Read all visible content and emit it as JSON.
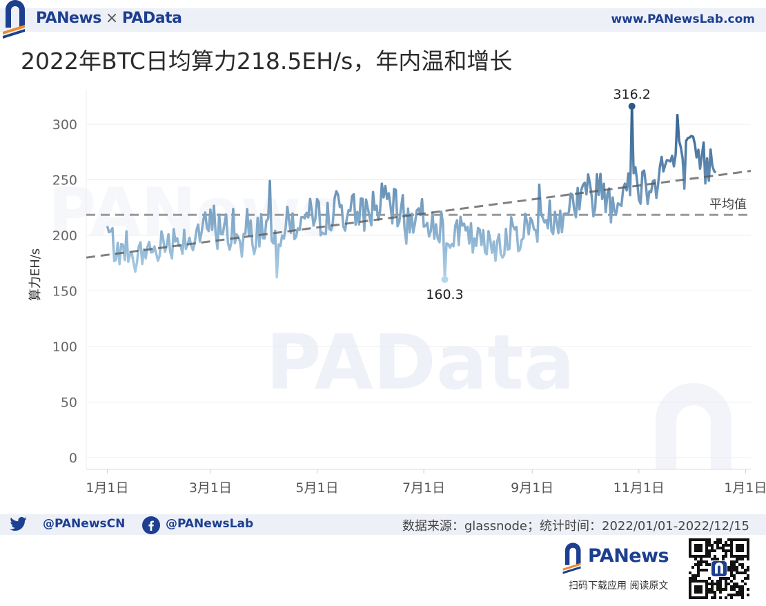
{
  "header": {
    "brand": "PANews",
    "separator": "×",
    "brand2": "PAData",
    "site": "www.PANewsLab.com"
  },
  "colors": {
    "brand_blue": "#1d3f8f",
    "line_light": "#a8cfe8",
    "line_dark": "#2f5f8f",
    "dashed": "#999999"
  },
  "chart_data": {
    "type": "line",
    "title": "2022年BTC日均算力218.5EH/s，年内温和增长",
    "xlabel": "",
    "ylabel": "算力EH/s",
    "x_start": "2022-01-01",
    "x_end": "2022-12-15",
    "x_range": [
      "2021-12-20",
      "2023-01-04"
    ],
    "ylim": [
      0,
      330
    ],
    "yticks": [
      0,
      50,
      100,
      150,
      200,
      250,
      300
    ],
    "x_ticks": [
      {
        "date": "2022-01-01",
        "label": "1月1日"
      },
      {
        "date": "2022-03-01",
        "label": "3月1日"
      },
      {
        "date": "2022-05-01",
        "label": "5月1日"
      },
      {
        "date": "2022-07-01",
        "label": "7月1日"
      },
      {
        "date": "2022-09-01",
        "label": "9月1日"
      },
      {
        "date": "2022-11-01",
        "label": "11月1日"
      },
      {
        "date": "2023-01-01",
        "label": "1月1日"
      }
    ],
    "grid": true,
    "series": [
      {
        "name": "",
        "unit": "EH/s",
        "values_weekly": [
          205,
          180,
          175,
          185,
          190,
          195,
          198,
          200,
          205,
          215,
          200,
          195,
          205,
          210,
          205,
          210,
          215,
          215,
          220,
          225,
          220,
          225,
          230,
          225,
          220,
          215,
          220,
          210,
          205,
          200,
          195,
          190,
          195,
          200,
          205,
          210,
          215,
          220,
          230,
          235,
          245,
          240,
          230,
          250,
          245,
          260,
          265,
          270,
          268,
          262,
          270,
          275
        ]
      }
    ],
    "max_point": {
      "date": "2022-10-28",
      "value": 316.2,
      "label": "316.2"
    },
    "min_point": {
      "date": "2022-07-13",
      "value": 160.3,
      "label": "160.3"
    },
    "average": {
      "value": 218.5,
      "label": "平均值"
    },
    "trend": {
      "x0": "2021-12-20",
      "y0": 180,
      "x1": "2023-01-04",
      "y1": 258
    }
  },
  "footer": {
    "twitter": "@PANewsCN",
    "facebook": "@PANewsLab",
    "source": "数据来源：glassnode；统计时间：2022/01/01-2022/12/15",
    "footer_brand": "PANews",
    "footer_sub": "扫码下载应用  阅读原文"
  }
}
